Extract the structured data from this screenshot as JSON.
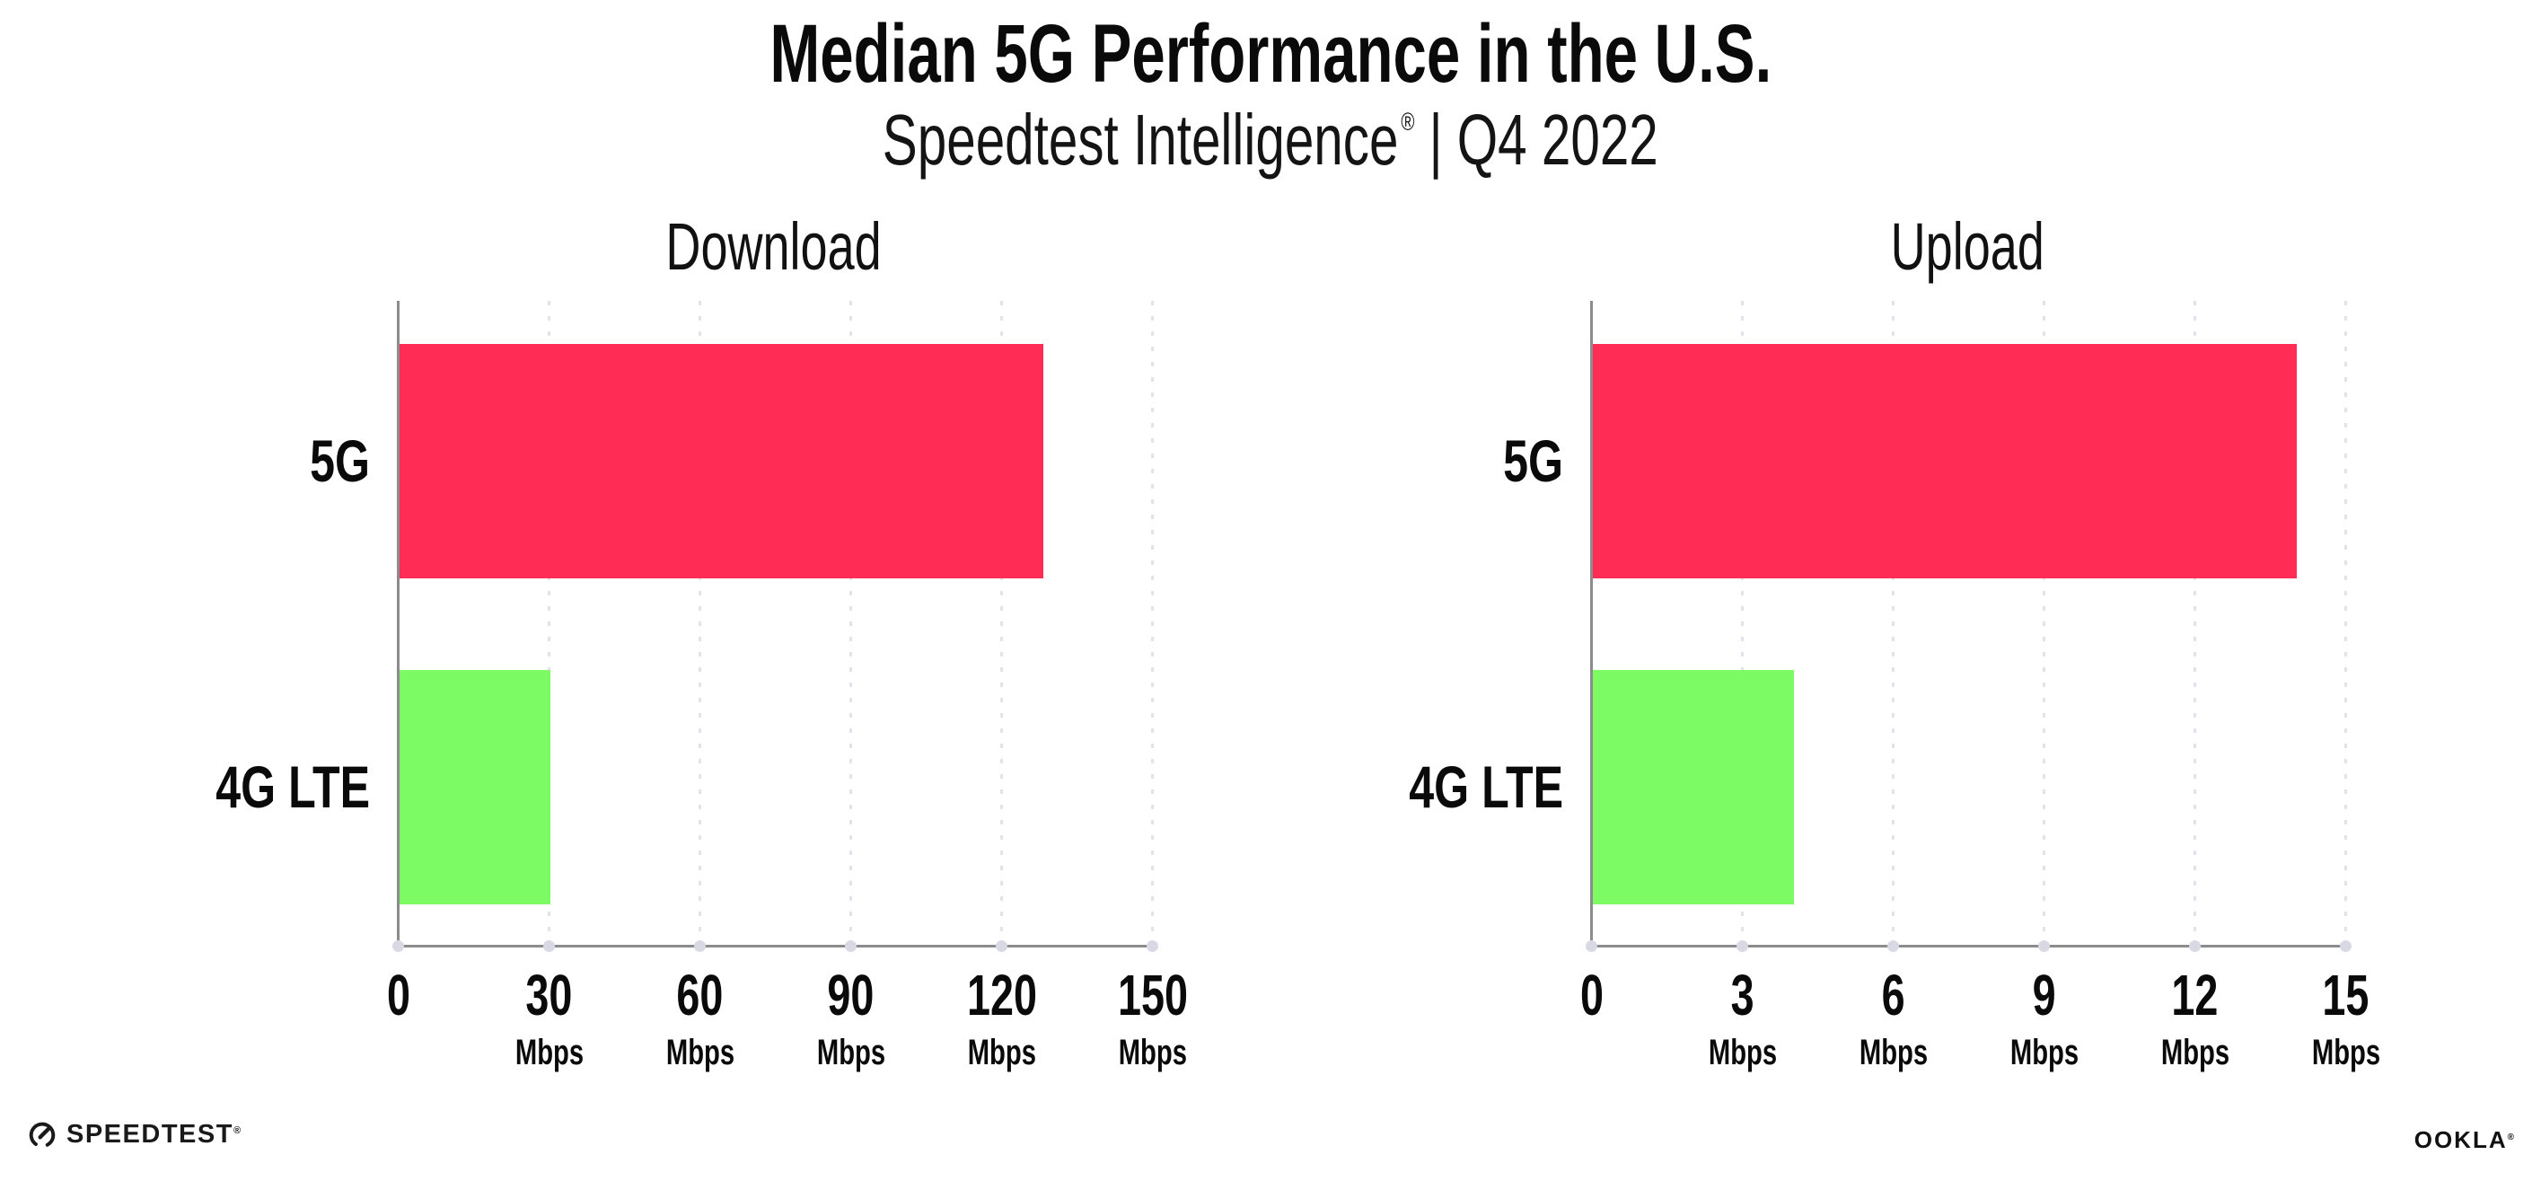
{
  "header": {
    "title": "Median 5G Performance in the U.S.",
    "subtitle_brand": "Speedtest Intelligence",
    "subtitle_reg": "®",
    "subtitle_sep": "|",
    "subtitle_period": "Q4 2022"
  },
  "chart_data": [
    {
      "type": "bar",
      "orientation": "horizontal",
      "title": "Download",
      "categories": [
        "5G",
        "4G LTE"
      ],
      "values": [
        128,
        30
      ],
      "unit": "Mbps",
      "xlim": [
        0,
        150
      ],
      "xticks": [
        0,
        30,
        60,
        90,
        120,
        150
      ],
      "grid": "dotted-vertical",
      "legend": "none",
      "bar_colors": [
        "#FF2D55",
        "#7CFB64"
      ]
    },
    {
      "type": "bar",
      "orientation": "horizontal",
      "title": "Upload",
      "categories": [
        "5G",
        "4G LTE"
      ],
      "values": [
        14,
        4
      ],
      "unit": "Mbps",
      "xlim": [
        0,
        15
      ],
      "xticks": [
        0,
        3,
        6,
        9,
        12,
        15
      ],
      "grid": "dotted-vertical",
      "legend": "none",
      "bar_colors": [
        "#FF2D55",
        "#7CFB64"
      ]
    }
  ],
  "colors": {
    "bar_5g": "#FF2D55",
    "bar_4g_lte": "#7CFB64",
    "gridline": "#E2E2EE",
    "axis": "#8C8C8C",
    "tick_dot": "#D9D9E6",
    "text": "#0A0A0A"
  },
  "footer": {
    "speedtest_label": "SPEEDTEST",
    "speedtest_reg": "®",
    "ookla_label": "OOKLA",
    "ookla_reg": "®"
  }
}
